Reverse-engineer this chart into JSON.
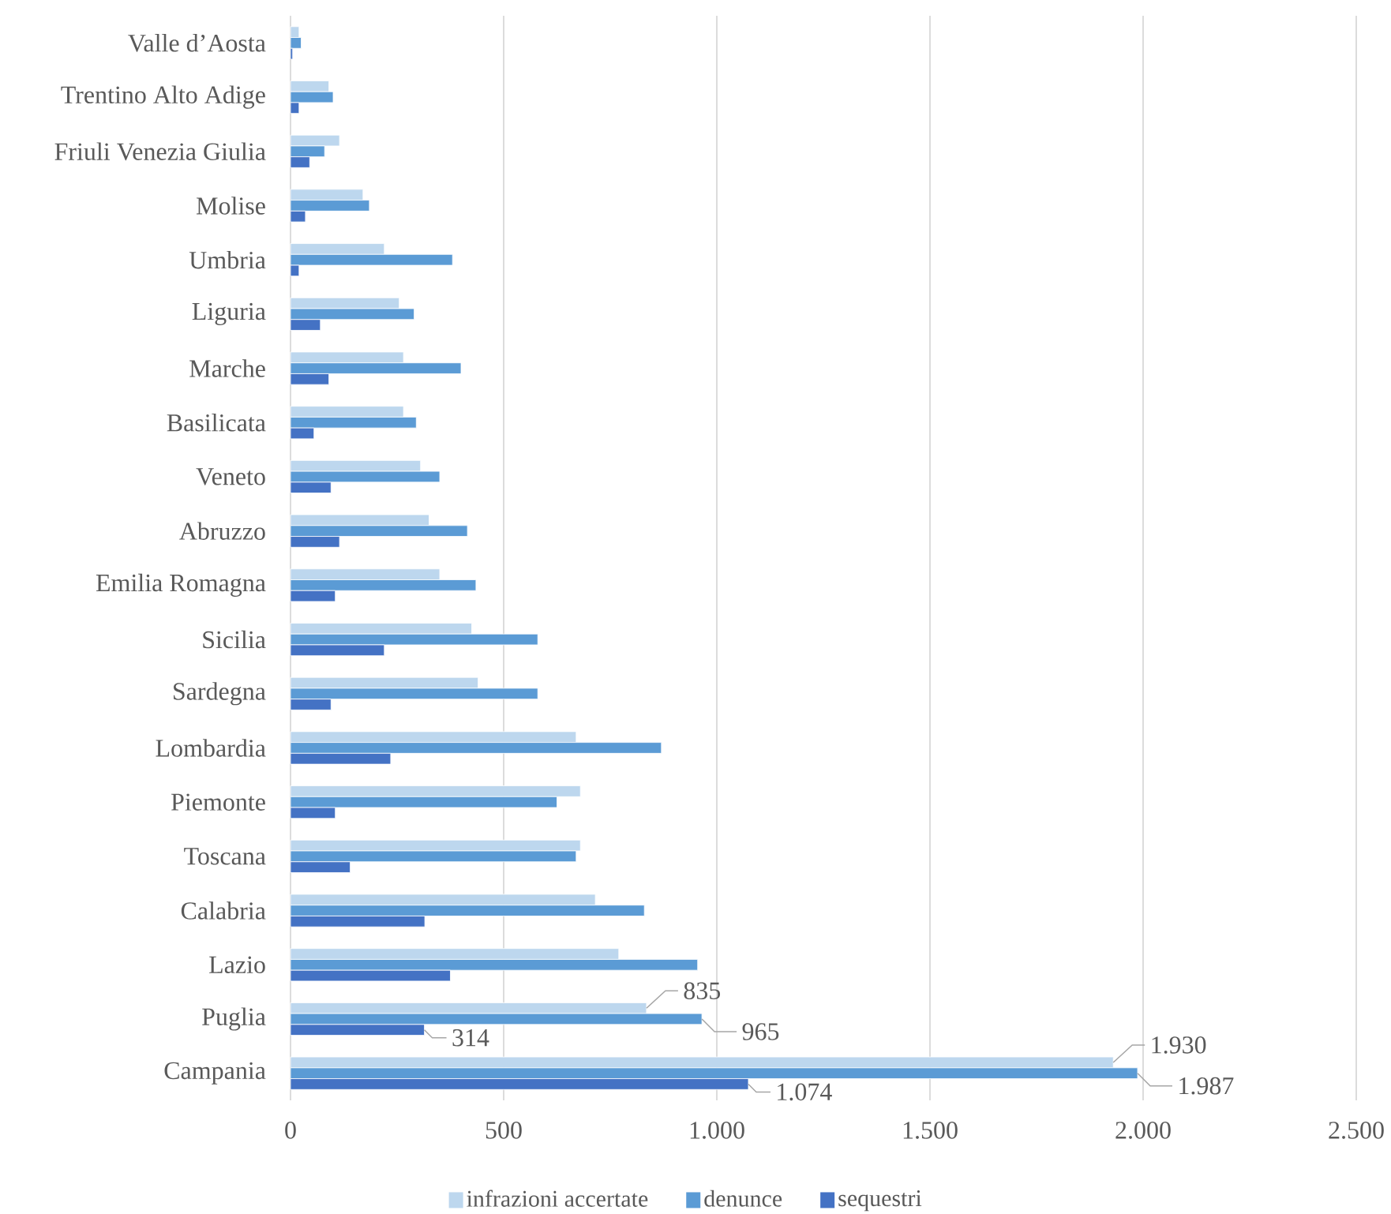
{
  "chart_data": {
    "type": "bar",
    "orientation": "horizontal",
    "categories": [
      "Valle d’Aosta",
      "Trentino Alto Adige",
      "Friuli Venezia Giulia",
      "Molise",
      "Umbria",
      "Liguria",
      "Marche",
      "Basilicata",
      "Veneto",
      "Abruzzo",
      "Emilia Romagna",
      "Sicilia",
      "Sardegna",
      "Lombardia",
      "Piemonte",
      "Toscana",
      "Calabria",
      "Lazio",
      "Puglia",
      "Campania"
    ],
    "series": [
      {
        "name": "infrazioni accertate",
        "color": "#bdd7ee",
        "values": [
          20,
          90,
          115,
          170,
          220,
          255,
          265,
          265,
          305,
          325,
          350,
          425,
          440,
          670,
          680,
          680,
          715,
          770,
          835,
          1930
        ],
        "value_labels": [
          null,
          null,
          null,
          null,
          null,
          null,
          null,
          null,
          null,
          null,
          null,
          null,
          null,
          null,
          null,
          null,
          null,
          null,
          "835",
          "1.930"
        ]
      },
      {
        "name": "denunce",
        "color": "#5b9bd5",
        "values": [
          25,
          100,
          80,
          185,
          380,
          290,
          400,
          295,
          350,
          415,
          435,
          580,
          580,
          870,
          625,
          670,
          830,
          955,
          965,
          1987
        ],
        "value_labels": [
          null,
          null,
          null,
          null,
          null,
          null,
          null,
          null,
          null,
          null,
          null,
          null,
          null,
          null,
          null,
          null,
          null,
          null,
          "965",
          "1.987"
        ]
      },
      {
        "name": "sequestri",
        "color": "#4472c4",
        "values": [
          5,
          20,
          45,
          35,
          20,
          70,
          90,
          55,
          95,
          115,
          105,
          220,
          95,
          235,
          105,
          140,
          315,
          375,
          314,
          1074
        ],
        "value_labels": [
          null,
          null,
          null,
          null,
          null,
          null,
          null,
          null,
          null,
          null,
          null,
          null,
          null,
          null,
          null,
          null,
          null,
          null,
          "314",
          "1.074"
        ]
      }
    ],
    "xlim": [
      0,
      2500
    ],
    "xticks": [
      0,
      500,
      {
        "value": 1000,
        "label": "1.000"
      },
      {
        "value": 1500,
        "label": "1.500"
      },
      {
        "value": 2000,
        "label": "2.000"
      },
      {
        "value": 2500,
        "label": "2.500"
      }
    ],
    "grid": "x",
    "legend": "bottom"
  }
}
